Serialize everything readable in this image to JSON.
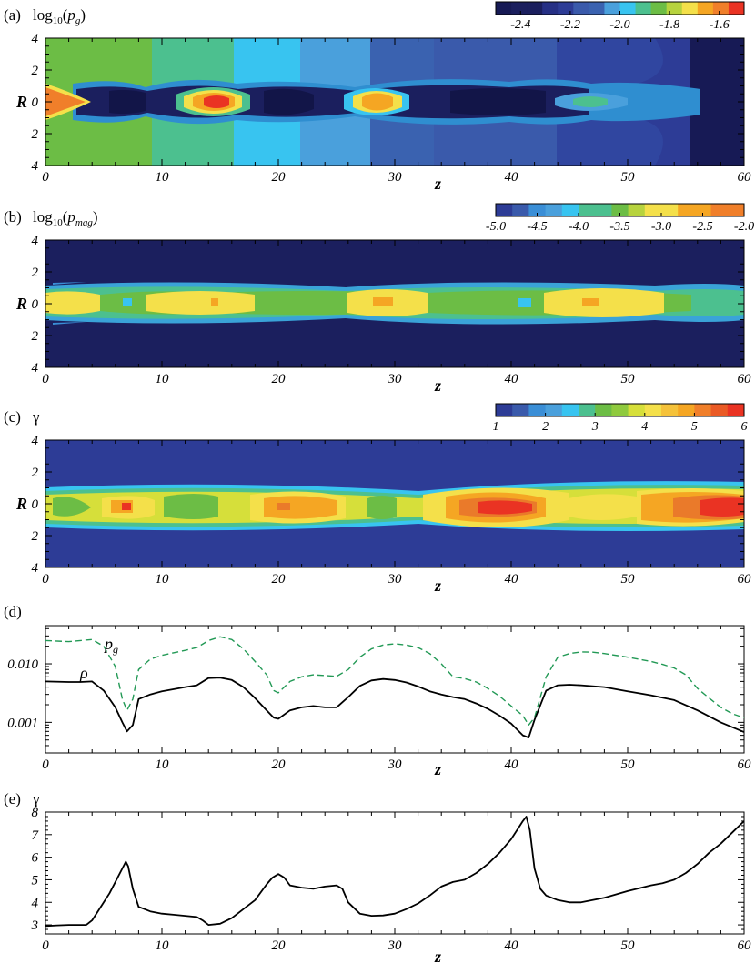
{
  "chart_data": [
    {
      "id": "a",
      "type": "heatmap",
      "panel_label": "(a)",
      "title": "log10(pg)",
      "xlabel": "z",
      "ylabel": "R",
      "xlim": [
        0,
        60
      ],
      "ylim": [
        -4,
        4
      ],
      "x_ticks": [
        "0",
        "10",
        "20",
        "30",
        "40",
        "50",
        "60"
      ],
      "y_ticks": [
        "4",
        "2",
        "0",
        "2",
        "4"
      ],
      "colorbar": {
        "range": [
          -2.5,
          -1.5
        ],
        "ticks": [
          "-2.4",
          "-2.2",
          "-2.0",
          "-1.8",
          "-1.6"
        ],
        "tick_values": [
          -2.4,
          -2.2,
          -2.0,
          -1.8,
          -1.6
        ]
      }
    },
    {
      "id": "b",
      "type": "heatmap",
      "panel_label": "(b)",
      "title": "log10(pmag)",
      "xlabel": "z",
      "ylabel": "R",
      "xlim": [
        0,
        60
      ],
      "ylim": [
        -4,
        4
      ],
      "x_ticks": [
        "0",
        "10",
        "20",
        "30",
        "40",
        "50",
        "60"
      ],
      "y_ticks": [
        "4",
        "2",
        "0",
        "2",
        "4"
      ],
      "colorbar": {
        "range": [
          -5.0,
          -2.0
        ],
        "ticks": [
          "-5.0",
          "-4.5",
          "-4.0",
          "-3.5",
          "-3.0",
          "-2.5",
          "-2.0"
        ],
        "tick_values": [
          -5.0,
          -4.5,
          -4.0,
          -3.5,
          -3.0,
          -2.5,
          -2.0
        ]
      }
    },
    {
      "id": "c",
      "type": "heatmap",
      "panel_label": "(c)",
      "title": "γ",
      "xlabel": "z",
      "ylabel": "R",
      "xlim": [
        0,
        60
      ],
      "ylim": [
        -4,
        4
      ],
      "x_ticks": [
        "0",
        "10",
        "20",
        "30",
        "40",
        "50",
        "60"
      ],
      "y_ticks": [
        "4",
        "2",
        "0",
        "2",
        "4"
      ],
      "colorbar": {
        "range": [
          1,
          6
        ],
        "ticks": [
          "1",
          "2",
          "3",
          "4",
          "5",
          "6"
        ],
        "tick_values": [
          1,
          2,
          3,
          4,
          5,
          6
        ]
      }
    },
    {
      "id": "d",
      "type": "line",
      "panel_label": "(d)",
      "xlabel": "z",
      "xlim": [
        0,
        60
      ],
      "ylim": [
        0.0003,
        0.045
      ],
      "yscale": "log",
      "x_ticks": [
        "0",
        "10",
        "20",
        "30",
        "40",
        "50",
        "60"
      ],
      "y_ticks": [
        "0.001",
        "0.010"
      ],
      "y_tick_values": [
        0.001,
        0.01
      ],
      "series": [
        {
          "name": "pg",
          "style": "dashed",
          "color": "#229955",
          "x": [
            0,
            2,
            4,
            5,
            6,
            6.6,
            7,
            7.5,
            8,
            9,
            10,
            12,
            13,
            14,
            15,
            16,
            17,
            18,
            19,
            19.6,
            20,
            21,
            22,
            23,
            24,
            25,
            26,
            27,
            28,
            29,
            30,
            31,
            32,
            33,
            34,
            35,
            36,
            37,
            38,
            39,
            40,
            41,
            41.5,
            42,
            43,
            44,
            45,
            46,
            47,
            48,
            50,
            52,
            53,
            54,
            55,
            56,
            57,
            58,
            59,
            60
          ],
          "y": [
            0.025,
            0.024,
            0.026,
            0.02,
            0.009,
            0.0025,
            0.0016,
            0.0025,
            0.008,
            0.012,
            0.014,
            0.017,
            0.019,
            0.025,
            0.029,
            0.026,
            0.018,
            0.011,
            0.0065,
            0.0035,
            0.0032,
            0.005,
            0.006,
            0.0065,
            0.0063,
            0.0061,
            0.008,
            0.013,
            0.018,
            0.021,
            0.022,
            0.021,
            0.019,
            0.015,
            0.01,
            0.006,
            0.0056,
            0.0049,
            0.0038,
            0.0028,
            0.0019,
            0.0013,
            0.0009,
            0.0012,
            0.006,
            0.013,
            0.015,
            0.016,
            0.0158,
            0.015,
            0.013,
            0.011,
            0.0098,
            0.0085,
            0.0065,
            0.0038,
            0.0026,
            0.0018,
            0.0014,
            0.0012
          ]
        },
        {
          "name": "ρ",
          "style": "solid",
          "color": "#000000",
          "x": [
            0,
            2,
            3,
            4,
            5,
            6,
            6.6,
            7,
            7.5,
            8,
            9,
            10,
            12,
            13,
            14,
            15,
            16,
            17,
            18,
            19,
            19.6,
            20,
            21,
            22,
            23,
            24,
            25,
            26,
            27,
            28,
            29,
            30,
            31,
            32,
            33,
            34,
            35,
            36,
            37,
            38,
            39,
            40,
            41,
            41.5,
            42,
            43,
            44,
            45,
            46,
            48,
            50,
            52,
            54,
            56,
            58,
            60
          ],
          "y": [
            0.005,
            0.0049,
            0.0049,
            0.005,
            0.0035,
            0.0018,
            0.001,
            0.0007,
            0.0009,
            0.0025,
            0.003,
            0.0034,
            0.004,
            0.0043,
            0.0057,
            0.0058,
            0.0053,
            0.004,
            0.0026,
            0.0016,
            0.0012,
            0.00115,
            0.0016,
            0.0018,
            0.0019,
            0.0018,
            0.0018,
            0.0027,
            0.0042,
            0.0052,
            0.0055,
            0.0053,
            0.0048,
            0.0041,
            0.0034,
            0.003,
            0.0027,
            0.0025,
            0.0021,
            0.0017,
            0.0013,
            0.00095,
            0.0006,
            0.00055,
            0.0011,
            0.0035,
            0.0043,
            0.0044,
            0.0043,
            0.004,
            0.0034,
            0.0029,
            0.0024,
            0.0016,
            0.001,
            0.00068
          ]
        }
      ]
    },
    {
      "id": "e",
      "type": "line",
      "panel_label": "(e)",
      "title": "γ",
      "xlabel": "z",
      "xlim": [
        0,
        60
      ],
      "ylim": [
        2.6,
        8.0
      ],
      "x_ticks": [
        "0",
        "10",
        "20",
        "30",
        "40",
        "50",
        "60"
      ],
      "y_ticks": [
        "3",
        "4",
        "5",
        "6",
        "7",
        "8"
      ],
      "y_tick_values": [
        3,
        4,
        5,
        6,
        7,
        8
      ],
      "series": [
        {
          "name": "",
          "style": "solid",
          "color": "#000000",
          "x": [
            0,
            1,
            2,
            3,
            3.5,
            4,
            4.5,
            5,
            5.5,
            6,
            6.5,
            6.9,
            7.1,
            7.5,
            8,
            9,
            10,
            11,
            12,
            13,
            13.5,
            14,
            15,
            16,
            17,
            18,
            19,
            19.5,
            20,
            20.5,
            21,
            21.5,
            22,
            23,
            24,
            25,
            25.5,
            26,
            27,
            28,
            29,
            30,
            31,
            32,
            33,
            34,
            35,
            36,
            37,
            38,
            39,
            40,
            40.5,
            41,
            41.3,
            41.6,
            42,
            42.5,
            43,
            44,
            45,
            46,
            47,
            48,
            50,
            52,
            53,
            54,
            55,
            56,
            57,
            58,
            59,
            60
          ],
          "y": [
            2.95,
            2.98,
            3.0,
            3.0,
            3.0,
            3.2,
            3.6,
            4.0,
            4.4,
            4.9,
            5.4,
            5.8,
            5.6,
            4.6,
            3.8,
            3.6,
            3.5,
            3.45,
            3.4,
            3.35,
            3.2,
            3.0,
            3.05,
            3.3,
            3.7,
            4.1,
            4.8,
            5.1,
            5.25,
            5.1,
            4.75,
            4.7,
            4.65,
            4.6,
            4.7,
            4.75,
            4.6,
            4.0,
            3.5,
            3.4,
            3.42,
            3.5,
            3.7,
            3.95,
            4.3,
            4.7,
            4.9,
            5.0,
            5.3,
            5.7,
            6.2,
            6.8,
            7.2,
            7.6,
            7.8,
            7.2,
            5.5,
            4.6,
            4.3,
            4.1,
            4.0,
            4.0,
            4.1,
            4.2,
            4.5,
            4.75,
            4.85,
            5.0,
            5.3,
            5.7,
            6.2,
            6.6,
            7.1,
            7.6
          ]
        }
      ]
    }
  ]
}
